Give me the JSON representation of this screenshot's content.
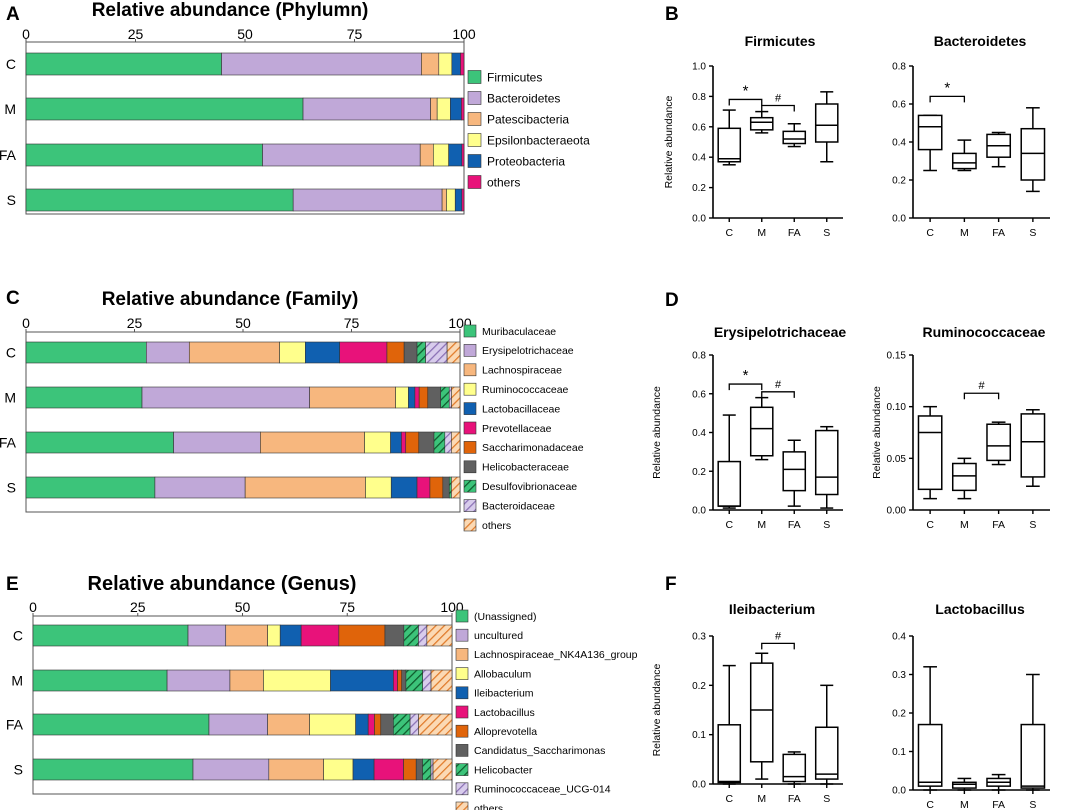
{
  "colors": {
    "green": "#3cc47a",
    "lavender": "#c0a8d8",
    "peach": "#f7b77e",
    "yellow": "#ffff8c",
    "blue": "#1060b0",
    "pink": "#e8127a",
    "orange": "#e0640a",
    "gray": "#606060",
    "dkgreen": "#1a7a40",
    "hatchpurple": "#9078b8",
    "hatchorange": "#e88a40"
  },
  "chart_data": [
    {
      "type": "stacked-bar-horizontal",
      "panel": "A",
      "title": "Relative abundance (Phylumn)",
      "axis_ticks": [
        "0",
        "25",
        "50",
        "75",
        "100"
      ],
      "categories": [
        "C",
        "M",
        "FA",
        "S"
      ],
      "series": [
        {
          "name": "Firmicutes",
          "values": [
            45,
            63,
            54,
            61
          ]
        },
        {
          "name": "Bacteroidetes",
          "values": [
            46,
            29,
            36,
            34
          ]
        },
        {
          "name": "Patescibacteria",
          "values": [
            4,
            1.5,
            3,
            1
          ]
        },
        {
          "name": "Epsilonbacteraeota",
          "values": [
            3,
            3,
            3.5,
            2
          ]
        },
        {
          "name": "Proteobacteria",
          "values": [
            2,
            2.5,
            3,
            1.5
          ]
        },
        {
          "name": "others",
          "values": [
            0.8,
            0.6,
            0.5,
            0.5
          ]
        }
      ]
    },
    {
      "type": "stacked-bar-horizontal",
      "panel": "C",
      "title": "Relative abundance (Family)",
      "axis_ticks": [
        "0",
        "25",
        "50",
        "75",
        "100"
      ],
      "categories": [
        "C",
        "M",
        "FA",
        "S"
      ],
      "series": [
        {
          "name": "Muribaculaceae",
          "values": [
            28,
            27,
            34,
            30
          ]
        },
        {
          "name": "Erysipelotrichaceae",
          "values": [
            10,
            39,
            20,
            21
          ]
        },
        {
          "name": "Lachnospiraceae",
          "values": [
            21,
            20,
            24,
            28
          ]
        },
        {
          "name": "Ruminococcaceae",
          "values": [
            6,
            3,
            6,
            6
          ]
        },
        {
          "name": "Lactobacillaceae",
          "values": [
            8,
            1.5,
            2.5,
            6
          ]
        },
        {
          "name": "Prevotellaceae",
          "values": [
            11,
            1,
            1,
            3
          ]
        },
        {
          "name": "Saccharimonadaceae",
          "values": [
            4,
            2,
            3,
            3
          ]
        },
        {
          "name": "Helicobacteraceae",
          "values": [
            3,
            3,
            3.5,
            1.5
          ]
        },
        {
          "name": "Desulfovibrionaceae",
          "values": [
            2,
            2,
            2.5,
            0.5
          ]
        },
        {
          "name": "Bacteroidaceae",
          "values": [
            5,
            0.5,
            1.5,
            0
          ]
        },
        {
          "name": "others",
          "values": [
            3,
            2,
            2,
            2
          ]
        }
      ]
    },
    {
      "type": "stacked-bar-horizontal",
      "panel": "E",
      "title": "Relative abundance (Genus)",
      "axis_ticks": [
        "0",
        "25",
        "50",
        "75",
        "100"
      ],
      "categories": [
        "C",
        "M",
        "FA",
        "S"
      ],
      "series": [
        {
          "name": "(Unassigned)",
          "values": [
            37,
            32,
            42,
            38
          ]
        },
        {
          "name": "uncultured",
          "values": [
            9,
            15,
            14,
            18
          ]
        },
        {
          "name": "Lachnospiraceae_NK4A136_group",
          "values": [
            10,
            8,
            10,
            13
          ]
        },
        {
          "name": "Allobaculum",
          "values": [
            3,
            16,
            11,
            7
          ]
        },
        {
          "name": "Ileibacterium",
          "values": [
            5,
            15,
            3,
            5
          ]
        },
        {
          "name": "Lactobacillus",
          "values": [
            9,
            1,
            1.5,
            7
          ]
        },
        {
          "name": "Alloprevotella",
          "values": [
            11,
            1,
            1.5,
            3
          ]
        },
        {
          "name": "Candidatus_Saccharimonas",
          "values": [
            4.5,
            1,
            3,
            1.5
          ]
        },
        {
          "name": "Helicobacter",
          "values": [
            3.5,
            4,
            4,
            2
          ]
        },
        {
          "name": "Ruminococcaceae_UCG-014",
          "values": [
            2,
            2,
            2,
            0.5
          ]
        },
        {
          "name": "others",
          "values": [
            6,
            5,
            8,
            4.5
          ]
        }
      ]
    },
    {
      "type": "boxplot",
      "panel": "B",
      "title": "Firmicutes",
      "ylabel": "Relative abundance",
      "categories": [
        "C",
        "M",
        "FA",
        "S"
      ],
      "ylim": [
        0,
        1.0
      ],
      "yticks": [
        "0.0",
        "0.2",
        "0.4",
        "0.6",
        "0.8",
        "1.0"
      ],
      "boxes": [
        {
          "min": 0.35,
          "q1": 0.37,
          "median": 0.39,
          "q3": 0.59,
          "max": 0.71
        },
        {
          "min": 0.56,
          "q1": 0.58,
          "median": 0.63,
          "q3": 0.66,
          "max": 0.7
        },
        {
          "min": 0.47,
          "q1": 0.49,
          "median": 0.52,
          "q3": 0.57,
          "max": 0.62
        },
        {
          "min": 0.37,
          "q1": 0.5,
          "median": 0.61,
          "q3": 0.75,
          "max": 0.83
        }
      ],
      "brackets": [
        {
          "from": 0,
          "to": 1,
          "label": "*",
          "y": 0.78
        },
        {
          "from": 1,
          "to": 2,
          "label": "#",
          "y": 0.74
        }
      ]
    },
    {
      "type": "boxplot",
      "panel": "B",
      "title": "Bacteroidetes",
      "ylabel": "",
      "categories": [
        "C",
        "M",
        "FA",
        "S"
      ],
      "ylim": [
        0,
        0.8
      ],
      "yticks": [
        "0.0",
        "0.2",
        "0.4",
        "0.6",
        "0.8"
      ],
      "boxes": [
        {
          "min": 0.25,
          "q1": 0.36,
          "median": 0.48,
          "q3": 0.54,
          "max": 0.54
        },
        {
          "min": 0.25,
          "q1": 0.26,
          "median": 0.29,
          "q3": 0.34,
          "max": 0.41
        },
        {
          "min": 0.27,
          "q1": 0.32,
          "median": 0.38,
          "q3": 0.44,
          "max": 0.45
        },
        {
          "min": 0.14,
          "q1": 0.2,
          "median": 0.34,
          "q3": 0.47,
          "max": 0.58
        }
      ],
      "brackets": [
        {
          "from": 0,
          "to": 1,
          "label": "*",
          "y": 0.64
        }
      ]
    },
    {
      "type": "boxplot",
      "panel": "D",
      "title": "Erysipelotrichaceae",
      "ylabel": "Relative abundance",
      "categories": [
        "C",
        "M",
        "FA",
        "S"
      ],
      "ylim": [
        0,
        0.8
      ],
      "yticks": [
        "0.0",
        "0.2",
        "0.4",
        "0.6",
        "0.8"
      ],
      "boxes": [
        {
          "min": 0.01,
          "q1": 0.02,
          "median": 0.02,
          "q3": 0.25,
          "max": 0.49
        },
        {
          "min": 0.26,
          "q1": 0.28,
          "median": 0.42,
          "q3": 0.53,
          "max": 0.58
        },
        {
          "min": 0.02,
          "q1": 0.1,
          "median": 0.21,
          "q3": 0.3,
          "max": 0.36
        },
        {
          "min": 0.01,
          "q1": 0.08,
          "median": 0.17,
          "q3": 0.41,
          "max": 0.43
        }
      ],
      "brackets": [
        {
          "from": 0,
          "to": 1,
          "label": "*",
          "y": 0.65
        },
        {
          "from": 1,
          "to": 2,
          "label": "#",
          "y": 0.61
        }
      ]
    },
    {
      "type": "boxplot",
      "panel": "D",
      "title": "Ruminococcaceae",
      "ylabel": "Relative abundance",
      "categories": [
        "C",
        "M",
        "FA",
        "S"
      ],
      "ylim": [
        0,
        0.15
      ],
      "yticks": [
        "0.00",
        "0.05",
        "0.10",
        "0.15"
      ],
      "boxes": [
        {
          "min": 0.011,
          "q1": 0.02,
          "median": 0.075,
          "q3": 0.091,
          "max": 0.1
        },
        {
          "min": 0.011,
          "q1": 0.019,
          "median": 0.033,
          "q3": 0.045,
          "max": 0.05
        },
        {
          "min": 0.044,
          "q1": 0.048,
          "median": 0.062,
          "q3": 0.083,
          "max": 0.085
        },
        {
          "min": 0.023,
          "q1": 0.032,
          "median": 0.066,
          "q3": 0.093,
          "max": 0.097
        }
      ],
      "brackets": [
        {
          "from": 1,
          "to": 2,
          "label": "#",
          "y": 0.113
        }
      ]
    },
    {
      "type": "boxplot",
      "panel": "F",
      "title": "Ileibacterium",
      "ylabel": "Relative abundance",
      "categories": [
        "C",
        "M",
        "FA",
        "S"
      ],
      "ylim": [
        0,
        0.3
      ],
      "yticks": [
        "0.0",
        "0.1",
        "0.2",
        "0.3"
      ],
      "boxes": [
        {
          "min": 0.0,
          "q1": 0.003,
          "median": 0.005,
          "q3": 0.12,
          "max": 0.24
        },
        {
          "min": 0.01,
          "q1": 0.045,
          "median": 0.15,
          "q3": 0.245,
          "max": 0.265
        },
        {
          "min": 0.0,
          "q1": 0.005,
          "median": 0.015,
          "q3": 0.06,
          "max": 0.065
        },
        {
          "min": 0.0,
          "q1": 0.01,
          "median": 0.02,
          "q3": 0.115,
          "max": 0.2
        }
      ],
      "brackets": [
        {
          "from": 1,
          "to": 2,
          "label": "#",
          "y": 0.285
        }
      ]
    },
    {
      "type": "boxplot",
      "panel": "F",
      "title": "Lactobacillus",
      "ylabel": "",
      "categories": [
        "C",
        "M",
        "FA",
        "S"
      ],
      "ylim": [
        0,
        0.4
      ],
      "yticks": [
        "0.0",
        "0.1",
        "0.2",
        "0.3",
        "0.4"
      ],
      "boxes": [
        {
          "min": 0.0,
          "q1": 0.01,
          "median": 0.02,
          "q3": 0.17,
          "max": 0.32
        },
        {
          "min": 0.0,
          "q1": 0.005,
          "median": 0.015,
          "q3": 0.02,
          "max": 0.03
        },
        {
          "min": 0.0,
          "q1": 0.01,
          "median": 0.02,
          "q3": 0.03,
          "max": 0.04
        },
        {
          "min": 0.0,
          "q1": 0.005,
          "median": 0.01,
          "q3": 0.17,
          "max": 0.3
        }
      ],
      "brackets": []
    }
  ],
  "panel_letters": [
    "A",
    "B",
    "C",
    "D",
    "E",
    "F"
  ]
}
